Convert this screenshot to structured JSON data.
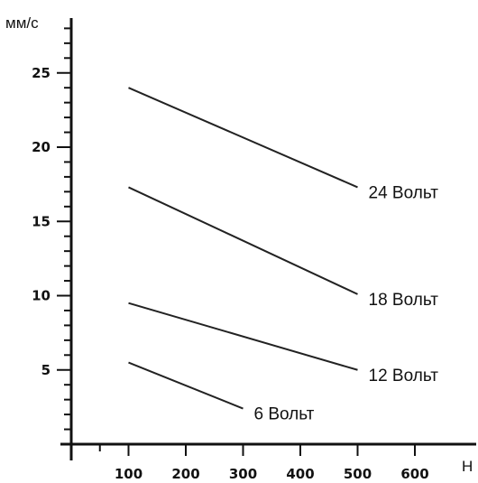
{
  "chart_data": {
    "type": "line",
    "ylabel": "мм/с",
    "xlabel": "Н",
    "xlim": [
      0,
      650
    ],
    "ylim": [
      0,
      28
    ],
    "x_ticks": [
      100,
      200,
      300,
      400,
      500,
      600
    ],
    "y_ticks": [
      5,
      10,
      15,
      20,
      25
    ],
    "grid": false,
    "series": [
      {
        "name": "24 Вольт",
        "x": [
          100,
          500
        ],
        "y": [
          24,
          17.3
        ]
      },
      {
        "name": "18 Вольт",
        "x": [
          100,
          500
        ],
        "y": [
          17.3,
          10.1
        ]
      },
      {
        "name": "12 Вольт",
        "x": [
          100,
          500
        ],
        "y": [
          9.5,
          5.0
        ]
      },
      {
        "name": "6 Вольт",
        "x": [
          100,
          300
        ],
        "y": [
          5.5,
          2.4
        ]
      }
    ]
  }
}
